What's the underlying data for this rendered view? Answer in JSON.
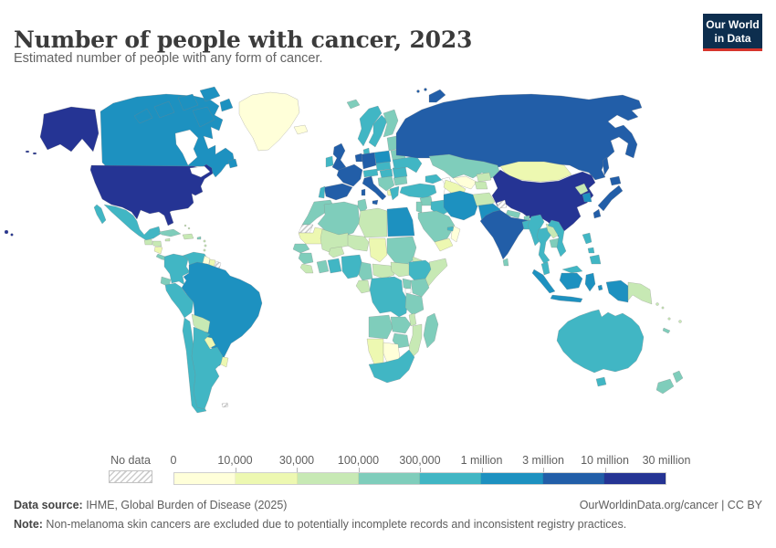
{
  "header": {
    "title": "Number of people with cancer, 2023",
    "subtitle": "Estimated number of people with any form of cancer.",
    "logo": {
      "line1": "Our World",
      "line2": "in Data",
      "bg_color": "#0d2e4e",
      "accent_color": "#d7352c"
    }
  },
  "legend": {
    "no_data_label": "No data",
    "tick_labels": [
      "0",
      "10,000",
      "30,000",
      "100,000",
      "300,000",
      "1 million",
      "3 million",
      "10 million",
      "30 million"
    ]
  },
  "footer": {
    "source_label": "Data source:",
    "source_text": " IHME, Global Burden of Disease (2025)",
    "right_text": "OurWorldinData.org/cancer | CC BY",
    "note_label": "Note:",
    "note_text": " Non-melanoma skin cancers are excluded due to potentially incomplete records and inconsistent registry practices."
  },
  "chart_data": {
    "type": "heatmap",
    "subtype": "world-choropleth",
    "title": "Number of people with cancer, 2023",
    "legend_position": "bottom",
    "no_data_pattern": "diagonal-hatch",
    "bins": [
      {
        "range": "0–10,000",
        "color": "#ffffd9"
      },
      {
        "range": "10,000–30,000",
        "color": "#edf8b1"
      },
      {
        "range": "30,000–100,000",
        "color": "#c7e9b4"
      },
      {
        "range": "100,000–300,000",
        "color": "#7fcdbb"
      },
      {
        "range": "300,000–1 million",
        "color": "#41b6c4"
      },
      {
        "range": "1–3 million",
        "color": "#1d91c0"
      },
      {
        "range": "3–10 million",
        "color": "#225ea8"
      },
      {
        "range": "10–30 million",
        "color": "#253494"
      }
    ],
    "countries": {
      "united-states": {
        "name": "United States",
        "bin": 7
      },
      "canada": {
        "name": "Canada",
        "bin": 5
      },
      "greenland": {
        "name": "Greenland",
        "bin": 0
      },
      "iceland": {
        "name": "Iceland",
        "bin": 0
      },
      "mexico": {
        "name": "Mexico",
        "bin": 4
      },
      "guatemala": {
        "name": "Guatemala",
        "bin": 2
      },
      "honduras": {
        "name": "Honduras",
        "bin": 2
      },
      "nicaragua": {
        "name": "Nicaragua",
        "bin": 1
      },
      "costa-rica-panama": {
        "name": "Costa Rica & Panama",
        "bin": 3
      },
      "cuba": {
        "name": "Cuba",
        "bin": 3
      },
      "jamaica": {
        "name": "Jamaica",
        "bin": 2
      },
      "hispaniola": {
        "name": "Haiti & Dominican Republic",
        "bin": 2
      },
      "puerto-rico": {
        "name": "Puerto Rico",
        "bin": 3
      },
      "bahamas": {
        "name": "Bahamas",
        "bin": 2
      },
      "lesser-antilles": {
        "name": "Lesser Antilles",
        "bin": 2
      },
      "colombia": {
        "name": "Colombia",
        "bin": 4
      },
      "venezuela": {
        "name": "Venezuela",
        "bin": 4
      },
      "guyana": {
        "name": "Guyana",
        "bin": 0
      },
      "suriname": {
        "name": "Suriname",
        "bin": 1
      },
      "french-guiana": {
        "name": "French Guiana",
        "bin": null
      },
      "ecuador": {
        "name": "Ecuador",
        "bin": 3
      },
      "peru": {
        "name": "Peru",
        "bin": 4
      },
      "brazil": {
        "name": "Brazil",
        "bin": 5
      },
      "bolivia": {
        "name": "Bolivia",
        "bin": 2
      },
      "paraguay": {
        "name": "Paraguay",
        "bin": 1
      },
      "uruguay": {
        "name": "Uruguay",
        "bin": 1
      },
      "chile": {
        "name": "Chile",
        "bin": 4
      },
      "argentina": {
        "name": "Argentina",
        "bin": 4
      },
      "falkland-islands": {
        "name": "Falkland Islands",
        "bin": null
      },
      "morocco": {
        "name": "Morocco",
        "bin": 3
      },
      "western-sahara": {
        "name": "Western Sahara",
        "bin": null
      },
      "algeria": {
        "name": "Algeria",
        "bin": 3
      },
      "tunisia": {
        "name": "Tunisia",
        "bin": 3
      },
      "libya": {
        "name": "Libya",
        "bin": 2
      },
      "egypt": {
        "name": "Egypt",
        "bin": 5
      },
      "mauritania": {
        "name": "Mauritania",
        "bin": 1
      },
      "mali": {
        "name": "Mali",
        "bin": 2
      },
      "burkina-faso": {
        "name": "Burkina Faso",
        "bin": 2
      },
      "niger": {
        "name": "Niger",
        "bin": 2
      },
      "chad": {
        "name": "Chad",
        "bin": 1
      },
      "sudan": {
        "name": "Sudan",
        "bin": 3
      },
      "eritrea": {
        "name": "Eritrea",
        "bin": 2
      },
      "senegal": {
        "name": "Senegal",
        "bin": 3
      },
      "guinea": {
        "name": "Guinea",
        "bin": 3
      },
      "sierra-leone-liberia": {
        "name": "Sierra Leone & Liberia",
        "bin": 2
      },
      "ivory-coast": {
        "name": "Côte d'Ivoire",
        "bin": 3
      },
      "ghana": {
        "name": "Ghana",
        "bin": 4
      },
      "nigeria": {
        "name": "Nigeria",
        "bin": 4
      },
      "cameroon": {
        "name": "Cameroon",
        "bin": 3
      },
      "central-african-republic": {
        "name": "Central African Republic",
        "bin": 2
      },
      "south-sudan": {
        "name": "South Sudan",
        "bin": 2
      },
      "ethiopia": {
        "name": "Ethiopia",
        "bin": 4
      },
      "somalia": {
        "name": "Somalia",
        "bin": 2
      },
      "uganda": {
        "name": "Uganda",
        "bin": 3
      },
      "kenya": {
        "name": "Kenya",
        "bin": 3
      },
      "congo-gabon": {
        "name": "Congo & Gabon",
        "bin": 2
      },
      "dr-congo": {
        "name": "Democratic Republic of Congo",
        "bin": 4
      },
      "tanzania": {
        "name": "Tanzania",
        "bin": 3
      },
      "angola": {
        "name": "Angola",
        "bin": 3
      },
      "zambia": {
        "name": "Zambia",
        "bin": 3
      },
      "malawi": {
        "name": "Malawi",
        "bin": 2
      },
      "mozambique": {
        "name": "Mozambique",
        "bin": 2
      },
      "zimbabwe": {
        "name": "Zimbabwe",
        "bin": 3
      },
      "namibia": {
        "name": "Namibia",
        "bin": 1
      },
      "botswana": {
        "name": "Botswana",
        "bin": 0
      },
      "south-africa": {
        "name": "South Africa",
        "bin": 4
      },
      "madagascar": {
        "name": "Madagascar",
        "bin": 3
      },
      "united-kingdom": {
        "name": "United Kingdom",
        "bin": 6
      },
      "ireland": {
        "name": "Ireland",
        "bin": 4
      },
      "norway": {
        "name": "Norway",
        "bin": 4
      },
      "svalbard": {
        "name": "Svalbard",
        "bin": 3
      },
      "sweden": {
        "name": "Sweden",
        "bin": 4
      },
      "finland": {
        "name": "Finland",
        "bin": 3
      },
      "denmark": {
        "name": "Denmark",
        "bin": 4
      },
      "baltic-states": {
        "name": "Baltic states",
        "bin": 3
      },
      "belarus": {
        "name": "Belarus",
        "bin": 3
      },
      "poland": {
        "name": "Poland",
        "bin": 5
      },
      "germany": {
        "name": "Germany",
        "bin": 6
      },
      "benelux": {
        "name": "Belgium & Netherlands",
        "bin": 6
      },
      "france": {
        "name": "France",
        "bin": 6
      },
      "spain": {
        "name": "Spain",
        "bin": 6
      },
      "portugal": {
        "name": "Portugal",
        "bin": 4
      },
      "switzerland-austria": {
        "name": "Switzerland & Austria",
        "bin": 4
      },
      "czechia-slovakia": {
        "name": "Czechia & Slovakia",
        "bin": 4
      },
      "hungary": {
        "name": "Hungary",
        "bin": 4
      },
      "italy": {
        "name": "Italy",
        "bin": 6
      },
      "balkans": {
        "name": "Croatia, Bosnia & Serbia",
        "bin": 3
      },
      "albania": {
        "name": "Albania & North Macedonia",
        "bin": 1
      },
      "romania": {
        "name": "Romania",
        "bin": 4
      },
      "bulgaria": {
        "name": "Bulgaria",
        "bin": 3
      },
      "greece": {
        "name": "Greece",
        "bin": 4
      },
      "ukraine": {
        "name": "Ukraine",
        "bin": 4
      },
      "russia": {
        "name": "Russia",
        "bin": 6
      },
      "kazakhstan": {
        "name": "Kazakhstan",
        "bin": 3
      },
      "uzbekistan": {
        "name": "Uzbekistan",
        "bin": 0
      },
      "turkmenistan": {
        "name": "Turkmenistan",
        "bin": 1
      },
      "kyrgyzstan": {
        "name": "Kyrgyzstan",
        "bin": 2
      },
      "tajikistan": {
        "name": "Tajikistan",
        "bin": 2
      },
      "caucasus": {
        "name": "Georgia, Armenia & Azerbaijan",
        "bin": 4
      },
      "turkey": {
        "name": "Turkey",
        "bin": 4
      },
      "syria": {
        "name": "Syria",
        "bin": 3
      },
      "israel-jordan": {
        "name": "Israel & Jordan",
        "bin": 3
      },
      "iraq": {
        "name": "Iraq",
        "bin": 4
      },
      "iran": {
        "name": "Iran",
        "bin": 5
      },
      "afghanistan": {
        "name": "Afghanistan",
        "bin": 2
      },
      "pakistan": {
        "name": "Pakistan",
        "bin": 5
      },
      "saudi-arabia": {
        "name": "Saudi Arabia",
        "bin": 3
      },
      "yemen": {
        "name": "Yemen",
        "bin": 1
      },
      "oman": {
        "name": "Oman",
        "bin": 0
      },
      "uae": {
        "name": "United Arab Emirates",
        "bin": 4
      },
      "mongolia": {
        "name": "Mongolia",
        "bin": 1
      },
      "china": {
        "name": "China",
        "bin": 7
      },
      "taiwan": {
        "name": "Taiwan",
        "bin": 6
      },
      "north-korea": {
        "name": "North Korea",
        "bin": 2
      },
      "south-korea": {
        "name": "South Korea",
        "bin": 5
      },
      "japan": {
        "name": "Japan",
        "bin": 6
      },
      "kashmir": {
        "name": "Kashmir (disputed)",
        "bin": null
      },
      "nepal": {
        "name": "Nepal",
        "bin": 3
      },
      "bhutan": {
        "name": "Bhutan",
        "bin": 3
      },
      "india": {
        "name": "India",
        "bin": 6
      },
      "sri-lanka": {
        "name": "Sri Lanka",
        "bin": 3
      },
      "bangladesh": {
        "name": "Bangladesh",
        "bin": 4
      },
      "myanmar": {
        "name": "Myanmar",
        "bin": 4
      },
      "thailand": {
        "name": "Thailand",
        "bin": 4
      },
      "laos": {
        "name": "Laos",
        "bin": 2
      },
      "cambodia": {
        "name": "Cambodia",
        "bin": 3
      },
      "vietnam": {
        "name": "Vietnam",
        "bin": 4
      },
      "malaysia": {
        "name": "Malaysia",
        "bin": 4
      },
      "indonesia": {
        "name": "Indonesia",
        "bin": 5
      },
      "philippines": {
        "name": "Philippines",
        "bin": 4
      },
      "papua-new-guinea": {
        "name": "Papua New Guinea",
        "bin": 2
      },
      "solomon-islands": {
        "name": "Solomon Islands",
        "bin": 2
      },
      "vanuatu": {
        "name": "Vanuatu",
        "bin": 2
      },
      "fiji": {
        "name": "Fiji",
        "bin": 2
      },
      "new-caledonia": {
        "name": "New Caledonia",
        "bin": 3
      },
      "australia": {
        "name": "Australia",
        "bin": 4
      },
      "new-zealand": {
        "name": "New Zealand",
        "bin": 3
      }
    }
  }
}
